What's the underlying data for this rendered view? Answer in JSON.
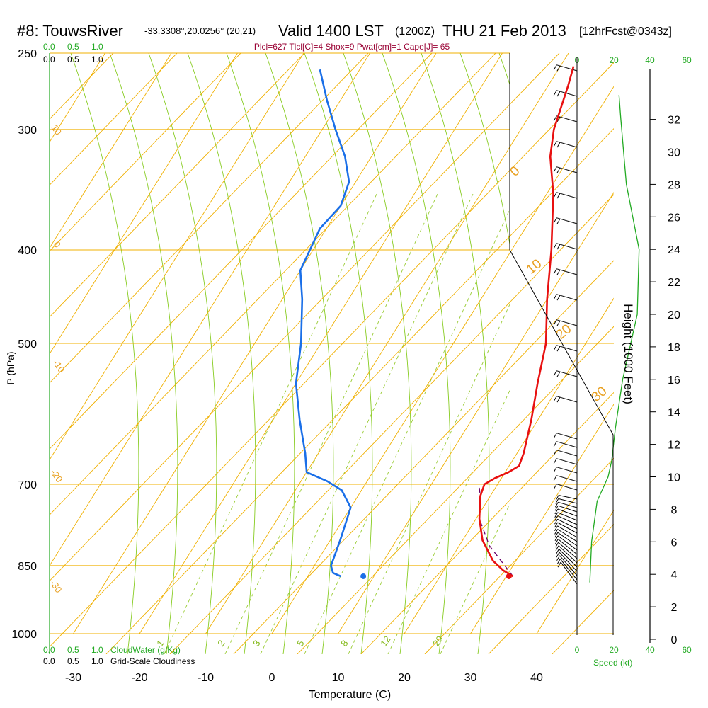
{
  "header": {
    "station": "#8: TouwsRiver",
    "coords": "-33.3308°,20.0256° (20,21)",
    "valid": "Valid 1400 LST",
    "zulu": "(1200Z)",
    "date": "THU 21 Feb 2013",
    "forecast": "[12hrFcst@0343z]",
    "params": "Plcl=627 Tlcl[C]=4 Shox=9 Pwat[cm]=1 Cape[J]= 65"
  },
  "chart_data": {
    "type": "line",
    "title": "#8: TouwsRiver Valid 1400 LST (1200Z) THU 21 Feb 2013 [12hrFcst@0343z]",
    "xlabel": "Temperature (C)",
    "ylabel": "P (hPa)",
    "y2label": "Height (1000 Feet)",
    "x_ticks": [
      -30,
      -20,
      -10,
      0,
      10,
      20,
      30,
      40
    ],
    "y_ticks": [
      250,
      300,
      400,
      500,
      700,
      850,
      1000
    ],
    "height_ticks": [
      0,
      2,
      4,
      6,
      8,
      10,
      12,
      14,
      16,
      18,
      20,
      22,
      24,
      26,
      28,
      30,
      32
    ],
    "xlim": [
      -34,
      36
    ],
    "ylim": [
      1000,
      250
    ],
    "skew": "skew-T log-P",
    "temperature": [
      {
        "p": 872,
        "t": 31
      },
      {
        "p": 860,
        "t": 29
      },
      {
        "p": 840,
        "t": 26.5
      },
      {
        "p": 800,
        "t": 23
      },
      {
        "p": 760,
        "t": 20.5
      },
      {
        "p": 720,
        "t": 18.5
      },
      {
        "p": 700,
        "t": 18
      },
      {
        "p": 690,
        "t": 19
      },
      {
        "p": 680,
        "t": 20.5
      },
      {
        "p": 670,
        "t": 21.5
      },
      {
        "p": 650,
        "t": 21
      },
      {
        "p": 600,
        "t": 19
      },
      {
        "p": 550,
        "t": 16.5
      },
      {
        "p": 500,
        "t": 14
      },
      {
        "p": 450,
        "t": 10
      },
      {
        "p": 400,
        "t": 6
      },
      {
        "p": 350,
        "t": 1
      },
      {
        "p": 320,
        "t": -3
      },
      {
        "p": 300,
        "t": -5
      },
      {
        "p": 270,
        "t": -7
      },
      {
        "p": 258,
        "t": -8
      }
    ],
    "dewpoint": [
      {
        "p": 872,
        "t": 5
      },
      {
        "p": 865,
        "t": 3.5
      },
      {
        "p": 850,
        "t": 2.5
      },
      {
        "p": 800,
        "t": 1.5
      },
      {
        "p": 740,
        "t": 0
      },
      {
        "p": 710,
        "t": -3
      },
      {
        "p": 695,
        "t": -6
      },
      {
        "p": 680,
        "t": -10
      },
      {
        "p": 650,
        "t": -12
      },
      {
        "p": 600,
        "t": -16
      },
      {
        "p": 550,
        "t": -20
      },
      {
        "p": 500,
        "t": -23
      },
      {
        "p": 450,
        "t": -27
      },
      {
        "p": 420,
        "t": -30
      },
      {
        "p": 380,
        "t": -31
      },
      {
        "p": 360,
        "t": -30
      },
      {
        "p": 340,
        "t": -31
      },
      {
        "p": 320,
        "t": -34
      },
      {
        "p": 300,
        "t": -38
      },
      {
        "p": 280,
        "t": -42
      },
      {
        "p": 260,
        "t": -46
      }
    ],
    "parcel": [
      {
        "p": 872,
        "t": 31
      },
      {
        "p": 810,
        "t": 24.5
      },
      {
        "p": 760,
        "t": 20.5
      },
      {
        "p": 720,
        "t": 18.5
      },
      {
        "p": 705,
        "t": 17.5
      }
    ],
    "surface_points": {
      "temperature_c": 32,
      "dewpoint_c": 10,
      "p": 872
    },
    "isotherms_c": [
      -100,
      -90,
      -80,
      -70,
      -60,
      -50,
      -40,
      -30,
      -20,
      -10,
      0,
      10,
      20,
      30,
      40
    ],
    "dry_adiabat_labels": [
      "10",
      "0",
      "-10",
      "-20",
      "-30"
    ],
    "moist_adiabat_labels": [
      "0",
      "10",
      "20",
      "30"
    ],
    "mixing_ratio_labels": [
      "1",
      "2",
      "3",
      "5",
      "8",
      "12",
      "20"
    ],
    "mixing_ratio_values": [
      1,
      2,
      3,
      5,
      8,
      12,
      20
    ],
    "wind_scale_labels": [
      "0",
      "20",
      "40",
      "60"
    ],
    "wind_scale_bottom": [
      "0",
      "20",
      "40",
      "60"
    ],
    "wind_speed_label": "Speed (kt)",
    "wind_speed_profile": [
      {
        "h": 3.5,
        "kt": 7
      },
      {
        "h": 6,
        "kt": 8
      },
      {
        "h": 8.5,
        "kt": 11
      },
      {
        "h": 10,
        "kt": 17
      },
      {
        "h": 11,
        "kt": 19
      },
      {
        "h": 13,
        "kt": 21
      },
      {
        "h": 16,
        "kt": 25
      },
      {
        "h": 20,
        "kt": 33
      },
      {
        "h": 24,
        "kt": 34
      },
      {
        "h": 28,
        "kt": 27
      },
      {
        "h": 32,
        "kt": 24
      },
      {
        "h": 33.5,
        "kt": 23
      }
    ],
    "cloud_scale": {
      "top_green": [
        "0.0",
        "0.5",
        "1.0"
      ],
      "top_black": [
        "0.0",
        "0.5",
        "1.0"
      ],
      "bottom_green": [
        "0.0",
        "0.5",
        "1.0"
      ],
      "bottom_black": [
        "0.0",
        "0.5",
        "1.0"
      ],
      "cloudwater_label": "CloudWater (g/Kg)",
      "cloudiness_label": "Grid-Scale Cloudiness"
    },
    "colors": {
      "temperature": "#e81010",
      "dewpoint": "#1a6fe8",
      "parcel": "#6a006a",
      "isobar": "#f0b000",
      "skew_grid": "#f0b000",
      "mixing_ratio": "#99cc33",
      "moist_adiabat": "#88cc22",
      "wind_speed": "#22aa22"
    }
  }
}
